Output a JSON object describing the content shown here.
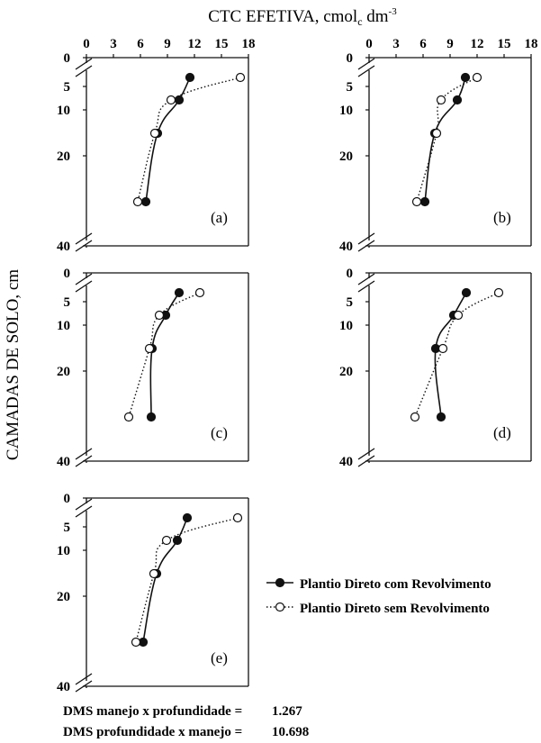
{
  "figure": {
    "xlabel": "CTC EFETIVA, cmol",
    "xlabel_sub": "c",
    "xlabel_unit": " dm",
    "xlabel_sup": "-3",
    "ylabel": "CAMADAS DE SOLO, cm",
    "legend": [
      {
        "label": "Plantio Direto com Revolvimento",
        "marker": "filled",
        "line": "solid"
      },
      {
        "label": "Plantio Direto sem Revolvimento",
        "marker": "open",
        "line": "dotted"
      }
    ],
    "footnotes": [
      {
        "label": "DMS manejo x profundidade =",
        "value": "1.267"
      },
      {
        "label": "DMS profundidade x manejo =",
        "value": "10.698"
      }
    ]
  },
  "chart_data": [
    {
      "type": "line",
      "panel_label": "(a)",
      "x_ticks": [
        "0",
        "3",
        "6",
        "9",
        "12",
        "15",
        "18"
      ],
      "y_ticks": [
        "0",
        "5",
        "10",
        "20",
        "40"
      ],
      "xlim": [
        0,
        18
      ],
      "series": [
        {
          "name": "Plantio Direto com Revolvimento",
          "x": [
            11.5,
            10.3,
            7.9,
            6.6
          ],
          "y": [
            2.5,
            7.5,
            15,
            30
          ]
        },
        {
          "name": "Plantio Direto sem Revolvimento",
          "x": [
            17.1,
            9.4,
            7.6,
            5.7
          ],
          "y": [
            2.5,
            7.5,
            15,
            30
          ]
        }
      ]
    },
    {
      "type": "line",
      "panel_label": "(b)",
      "x_ticks": [
        "0",
        "3",
        "6",
        "9",
        "12",
        "15",
        "18"
      ],
      "y_ticks": [
        "0",
        "5",
        "10",
        "20",
        "40"
      ],
      "xlim": [
        0,
        18
      ],
      "series": [
        {
          "name": "Plantio Direto com Revolvimento",
          "x": [
            10.7,
            9.8,
            7.3,
            6.2
          ],
          "y": [
            2.5,
            7.5,
            15,
            30
          ]
        },
        {
          "name": "Plantio Direto sem Revolvimento",
          "x": [
            12.0,
            8.0,
            7.5,
            5.3
          ],
          "y": [
            2.5,
            7.5,
            15,
            30
          ]
        }
      ]
    },
    {
      "type": "line",
      "panel_label": "(c)",
      "x_ticks": [
        "0",
        "3",
        "6",
        "9",
        "12",
        "15",
        "18"
      ],
      "y_ticks": [
        "0",
        "5",
        "10",
        "20",
        "40"
      ],
      "xlim": [
        0,
        18
      ],
      "series": [
        {
          "name": "Plantio Direto com Revolvimento",
          "x": [
            10.3,
            8.8,
            7.3,
            7.2
          ],
          "y": [
            2.5,
            7.5,
            15,
            30
          ]
        },
        {
          "name": "Plantio Direto sem Revolvimento",
          "x": [
            12.6,
            8.1,
            7.0,
            4.7
          ],
          "y": [
            2.5,
            7.5,
            15,
            30
          ]
        }
      ]
    },
    {
      "type": "line",
      "panel_label": "(d)",
      "x_ticks": [
        "0",
        "3",
        "6",
        "9",
        "12",
        "15",
        "18"
      ],
      "y_ticks": [
        "0",
        "5",
        "10",
        "20",
        "40"
      ],
      "xlim": [
        0,
        18
      ],
      "series": [
        {
          "name": "Plantio Direto com Revolvimento",
          "x": [
            10.8,
            9.4,
            7.4,
            8.0
          ],
          "y": [
            2.5,
            7.5,
            15,
            30
          ]
        },
        {
          "name": "Plantio Direto sem Revolvimento",
          "x": [
            14.4,
            9.9,
            8.2,
            5.1
          ],
          "y": [
            2.5,
            7.5,
            15,
            30
          ]
        }
      ]
    },
    {
      "type": "line",
      "panel_label": "(e)",
      "x_ticks": [
        "0",
        "3",
        "6",
        "9",
        "12",
        "15",
        "18"
      ],
      "y_ticks": [
        "0",
        "5",
        "10",
        "20",
        "40"
      ],
      "xlim": [
        0,
        18
      ],
      "series": [
        {
          "name": "Plantio Direto com Revolvimento",
          "x": [
            11.2,
            10.1,
            7.8,
            6.3
          ],
          "y": [
            2.5,
            7.5,
            15,
            30
          ]
        },
        {
          "name": "Plantio Direto sem Revolvimento",
          "x": [
            16.8,
            8.9,
            7.5,
            5.5
          ],
          "y": [
            2.5,
            7.5,
            15,
            30
          ]
        }
      ]
    }
  ]
}
